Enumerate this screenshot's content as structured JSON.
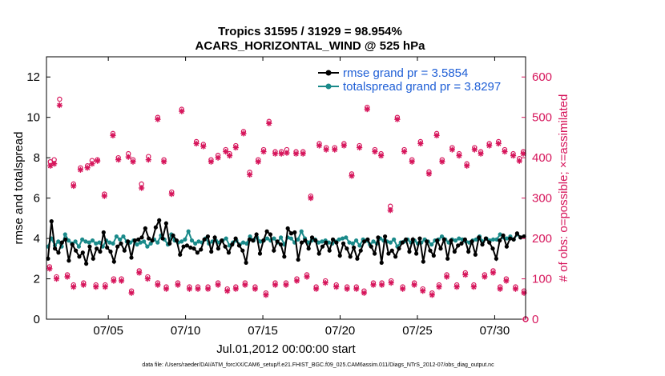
{
  "chart_data": {
    "type": "line",
    "title_line1": "Tropics 31595 / 31929 = 98.954%",
    "title_line2": "ACARS_HORIZONTAL_WIND @ 525 hPa",
    "xlabel": "Jul.01,2012 00:00:00 start",
    "ylabel_left": "rmse and totalspread",
    "ylabel_right": "# of obs: o=possible; ×=assimilated",
    "x_range_days": [
      1.0,
      32.0
    ],
    "x_ticks": [
      {
        "day": 5,
        "label": "07/05"
      },
      {
        "day": 10,
        "label": "07/10"
      },
      {
        "day": 15,
        "label": "07/15"
      },
      {
        "day": 20,
        "label": "07/20"
      },
      {
        "day": 25,
        "label": "07/25"
      },
      {
        "day": 30,
        "label": "07/30"
      }
    ],
    "ylim_left": [
      0,
      13
    ],
    "yticks_left": [
      "0",
      "2",
      "4",
      "6",
      "8",
      "10",
      "12"
    ],
    "ylim_right": [
      0,
      650
    ],
    "yticks_right": [
      "0",
      "100",
      "200",
      "300",
      "400",
      "500",
      "600"
    ],
    "grid": false,
    "legend_placement": "top-right",
    "colors": {
      "rmse": "#000000",
      "spread": "#1a8a8a",
      "obs": "#d6155b",
      "legend_text": "#1f5fd6"
    },
    "series": [
      {
        "name": "rmse grand pr = 3.5854",
        "axis": "left",
        "values": [
          3.0,
          4.85,
          3.5,
          3.3,
          3.8,
          3.95,
          2.9,
          3.7,
          3.4,
          3.1,
          3.3,
          2.75,
          3.6,
          3.0,
          3.5,
          3.35,
          4.3,
          3.55,
          3.35,
          2.85,
          3.6,
          3.75,
          3.4,
          3.85,
          3.05,
          3.9,
          3.95,
          4.05,
          4.5,
          4.0,
          3.9,
          4.55,
          4.9,
          4.0,
          4.75,
          3.75,
          4.15,
          3.9,
          3.2,
          3.6,
          3.65,
          3.55,
          3.5,
          3.3,
          3.45,
          3.95,
          4.1,
          3.35,
          4.05,
          3.5,
          3.9,
          3.6,
          3.3,
          3.7,
          4.0,
          3.65,
          3.4,
          2.8,
          3.95,
          3.9,
          4.2,
          3.25,
          3.9,
          4.35,
          4.2,
          3.4,
          3.85,
          3.7,
          3.1,
          4.5,
          4.25,
          4.3,
          2.95,
          3.8,
          3.9,
          3.5,
          4.05,
          3.9,
          3.25,
          3.6,
          3.8,
          3.4,
          3.95,
          3.8,
          3.15,
          3.75,
          3.5,
          3.1,
          3.55,
          3.0,
          3.4,
          3.85,
          3.95,
          3.6,
          3.25,
          4.05,
          2.8,
          4.1,
          3.25,
          3.4,
          3.1,
          3.5,
          3.8,
          3.95,
          3.35,
          3.95,
          3.25,
          4.0,
          2.85,
          3.85,
          3.4,
          3.15,
          3.9,
          3.5,
          3.95,
          3.0,
          3.9,
          3.35,
          3.65,
          3.75,
          3.95,
          3.35,
          3.85,
          3.2,
          4.05,
          3.7,
          4.0,
          3.8,
          3.5,
          3.0,
          3.9,
          4.15,
          3.6,
          4.0,
          3.95,
          4.25,
          4.05,
          4.1
        ],
        "marker": "filled-circle"
      },
      {
        "name": "totalspread grand pr = 3.8297",
        "axis": "left",
        "values": [
          3.6,
          4.0,
          3.65,
          3.85,
          3.6,
          4.2,
          3.9,
          3.75,
          3.85,
          3.6,
          3.95,
          3.85,
          3.8,
          3.9,
          3.75,
          3.8,
          3.6,
          3.9,
          3.8,
          3.75,
          4.1,
          3.95,
          4.1,
          3.85,
          3.8,
          3.9,
          3.7,
          3.8,
          3.85,
          3.6,
          3.75,
          3.95,
          3.8,
          4.15,
          3.95,
          3.7,
          4.2,
          3.9,
          3.8,
          3.85,
          3.95,
          4.35,
          3.9,
          3.75,
          3.85,
          3.8,
          4.0,
          3.75,
          3.85,
          3.9,
          3.8,
          3.9,
          4.0,
          3.65,
          3.8,
          3.9,
          3.7,
          3.8,
          3.75,
          4.1,
          3.9,
          4.05,
          3.85,
          3.9,
          4.0,
          3.9,
          4.0,
          3.8,
          4.05,
          3.7,
          4.05,
          4.0,
          3.8,
          3.95,
          4.35,
          4.0,
          3.8,
          3.9,
          3.95,
          3.8,
          3.85,
          3.9,
          3.8,
          3.75,
          3.85,
          3.95,
          4.0,
          4.05,
          3.8,
          3.75,
          3.9,
          3.65,
          3.95,
          3.9,
          3.7,
          3.85,
          3.75,
          4.0,
          3.9,
          3.85,
          3.8,
          3.95,
          3.6,
          3.8,
          3.85,
          3.95,
          3.8,
          3.9,
          3.75,
          3.8,
          3.95,
          3.85,
          3.7,
          3.9,
          3.95,
          4.1,
          3.95,
          3.8,
          3.95,
          3.9,
          4.0,
          3.95,
          3.85,
          3.8,
          3.9,
          3.95,
          4.1,
          3.85,
          4.0,
          3.9,
          3.95,
          3.95,
          4.2,
          4.05,
          4.0,
          4.1,
          3.95,
          4.2,
          4.05,
          4.1
        ],
        "marker": "filled-circle"
      },
      {
        "name": "obs possible (high)",
        "axis": "right",
        "marker": "open-circle",
        "x": [
          1.25,
          1.5,
          1.85,
          2.75,
          3.2,
          3.65,
          3.95,
          4.3,
          4.75,
          5.3,
          5.65,
          6.3,
          6.6,
          7.15,
          7.6,
          8.2,
          8.6,
          9.1,
          9.75,
          10.7,
          11.15,
          11.65,
          12.1,
          12.6,
          12.85,
          13.25,
          13.75,
          14.15,
          14.7,
          15.05,
          15.4,
          15.8,
          16.2,
          16.55,
          17.15,
          17.6,
          18.1,
          18.65,
          19.1,
          19.65,
          20.25,
          20.75,
          21.25,
          21.75,
          22.25,
          22.65,
          23.25,
          23.7,
          24.15,
          24.65,
          25.2,
          25.75,
          26.25,
          26.6,
          27.25,
          27.7,
          28.2,
          28.7,
          29.1,
          29.65,
          30.25,
          30.65,
          31.2,
          31.6,
          31.85
        ],
        "values": [
          390,
          395,
          545,
          335,
          375,
          380,
          393,
          395,
          310,
          460,
          400,
          410,
          395,
          335,
          403,
          500,
          395,
          315,
          520,
          440,
          433,
          395,
          406,
          420,
          410,
          430,
          465,
          364,
          395,
          420,
          490,
          415,
          415,
          420,
          415,
          415,
          305,
          435,
          425,
          425,
          435,
          360,
          430,
          525,
          420,
          410,
          280,
          500,
          420,
          395,
          440,
          365,
          460,
          395,
          425,
          410,
          385,
          425,
          415,
          435,
          440,
          420,
          410,
          398,
          415
        ]
      },
      {
        "name": "obs assimilated (high)",
        "axis": "right",
        "marker": "star",
        "x": [
          1.25,
          1.5,
          1.85,
          2.75,
          3.2,
          3.65,
          3.95,
          4.3,
          4.75,
          5.3,
          5.65,
          6.3,
          6.6,
          7.15,
          7.6,
          8.2,
          8.6,
          9.1,
          9.75,
          10.7,
          11.15,
          11.65,
          12.1,
          12.6,
          12.85,
          13.25,
          13.75,
          14.15,
          14.7,
          15.05,
          15.4,
          15.8,
          16.2,
          16.55,
          17.15,
          17.6,
          18.1,
          18.65,
          19.1,
          19.65,
          20.25,
          20.75,
          21.25,
          21.75,
          22.25,
          22.65,
          23.25,
          23.7,
          24.15,
          24.65,
          25.2,
          25.75,
          26.25,
          26.6,
          27.25,
          27.7,
          28.2,
          28.7,
          29.1,
          29.65,
          30.25,
          30.65,
          31.2,
          31.6,
          31.85
        ],
        "values": [
          380,
          385,
          530,
          330,
          370,
          375,
          385,
          392,
          305,
          455,
          395,
          402,
          390,
          325,
          395,
          495,
          390,
          310,
          515,
          435,
          428,
          390,
          400,
          415,
          405,
          425,
          460,
          358,
          390,
          415,
          485,
          410,
          410,
          412,
          410,
          410,
          300,
          430,
          420,
          420,
          430,
          355,
          425,
          520,
          415,
          405,
          270,
          495,
          415,
          390,
          435,
          360,
          455,
          390,
          420,
          405,
          380,
          420,
          410,
          430,
          435,
          415,
          405,
          392,
          410
        ]
      },
      {
        "name": "obs possible (low)",
        "axis": "right",
        "marker": "open-circle",
        "x": [
          1.2,
          1.65,
          2.35,
          2.75,
          3.4,
          4.2,
          4.8,
          5.35,
          5.85,
          6.5,
          7.0,
          7.55,
          8.2,
          8.75,
          9.5,
          10.25,
          10.8,
          11.45,
          12.1,
          12.7,
          13.25,
          13.85,
          14.5,
          15.2,
          15.8,
          16.5,
          17.2,
          17.85,
          18.45,
          19.05,
          19.75,
          20.45,
          21.05,
          21.55,
          22.15,
          22.7,
          23.3,
          24.05,
          24.8,
          25.35,
          25.95,
          26.4,
          26.9,
          27.55,
          28.1,
          28.65,
          29.35,
          29.9,
          30.35,
          30.75,
          31.35,
          31.9
        ],
        "values": [
          130,
          105,
          110,
          85,
          90,
          85,
          85,
          100,
          100,
          70,
          120,
          105,
          90,
          80,
          90,
          80,
          80,
          80,
          90,
          75,
          80,
          90,
          80,
          65,
          90,
          90,
          100,
          110,
          80,
          95,
          85,
          80,
          80,
          70,
          90,
          90,
          95,
          80,
          90,
          75,
          65,
          85,
          110,
          85,
          115,
          85,
          110,
          120,
          80,
          100,
          80,
          70
        ]
      },
      {
        "name": "obs assimilated (low)",
        "axis": "right",
        "marker": "star",
        "x": [
          1.2,
          1.65,
          2.35,
          2.75,
          3.4,
          4.2,
          4.8,
          5.35,
          5.85,
          6.5,
          7.0,
          7.55,
          8.2,
          8.75,
          9.5,
          10.25,
          10.8,
          11.45,
          12.1,
          12.7,
          13.25,
          13.85,
          14.5,
          15.2,
          15.8,
          16.5,
          17.2,
          17.85,
          18.45,
          19.05,
          19.75,
          20.45,
          21.05,
          21.55,
          22.15,
          22.7,
          23.3,
          24.05,
          24.8,
          25.35,
          25.95,
          26.4,
          26.9,
          27.55,
          28.1,
          28.65,
          29.35,
          29.9,
          30.35,
          30.75,
          31.35,
          31.9
        ],
        "values": [
          125,
          100,
          105,
          80,
          85,
          80,
          80,
          95,
          95,
          65,
          115,
          100,
          85,
          75,
          85,
          75,
          75,
          75,
          85,
          70,
          75,
          85,
          75,
          60,
          85,
          85,
          95,
          105,
          75,
          90,
          80,
          75,
          75,
          65,
          85,
          85,
          90,
          75,
          85,
          70,
          60,
          80,
          105,
          80,
          110,
          80,
          105,
          115,
          75,
          95,
          75,
          65
        ]
      }
    ],
    "footer": "data file: /Users/raeder/DAI/ATM_forcXX/CAM6_setup/f.e21.FHIST_BGC.f09_025.CAM6assim.011/Diags_NTrS_2012-07/obs_diag_output.nc"
  }
}
